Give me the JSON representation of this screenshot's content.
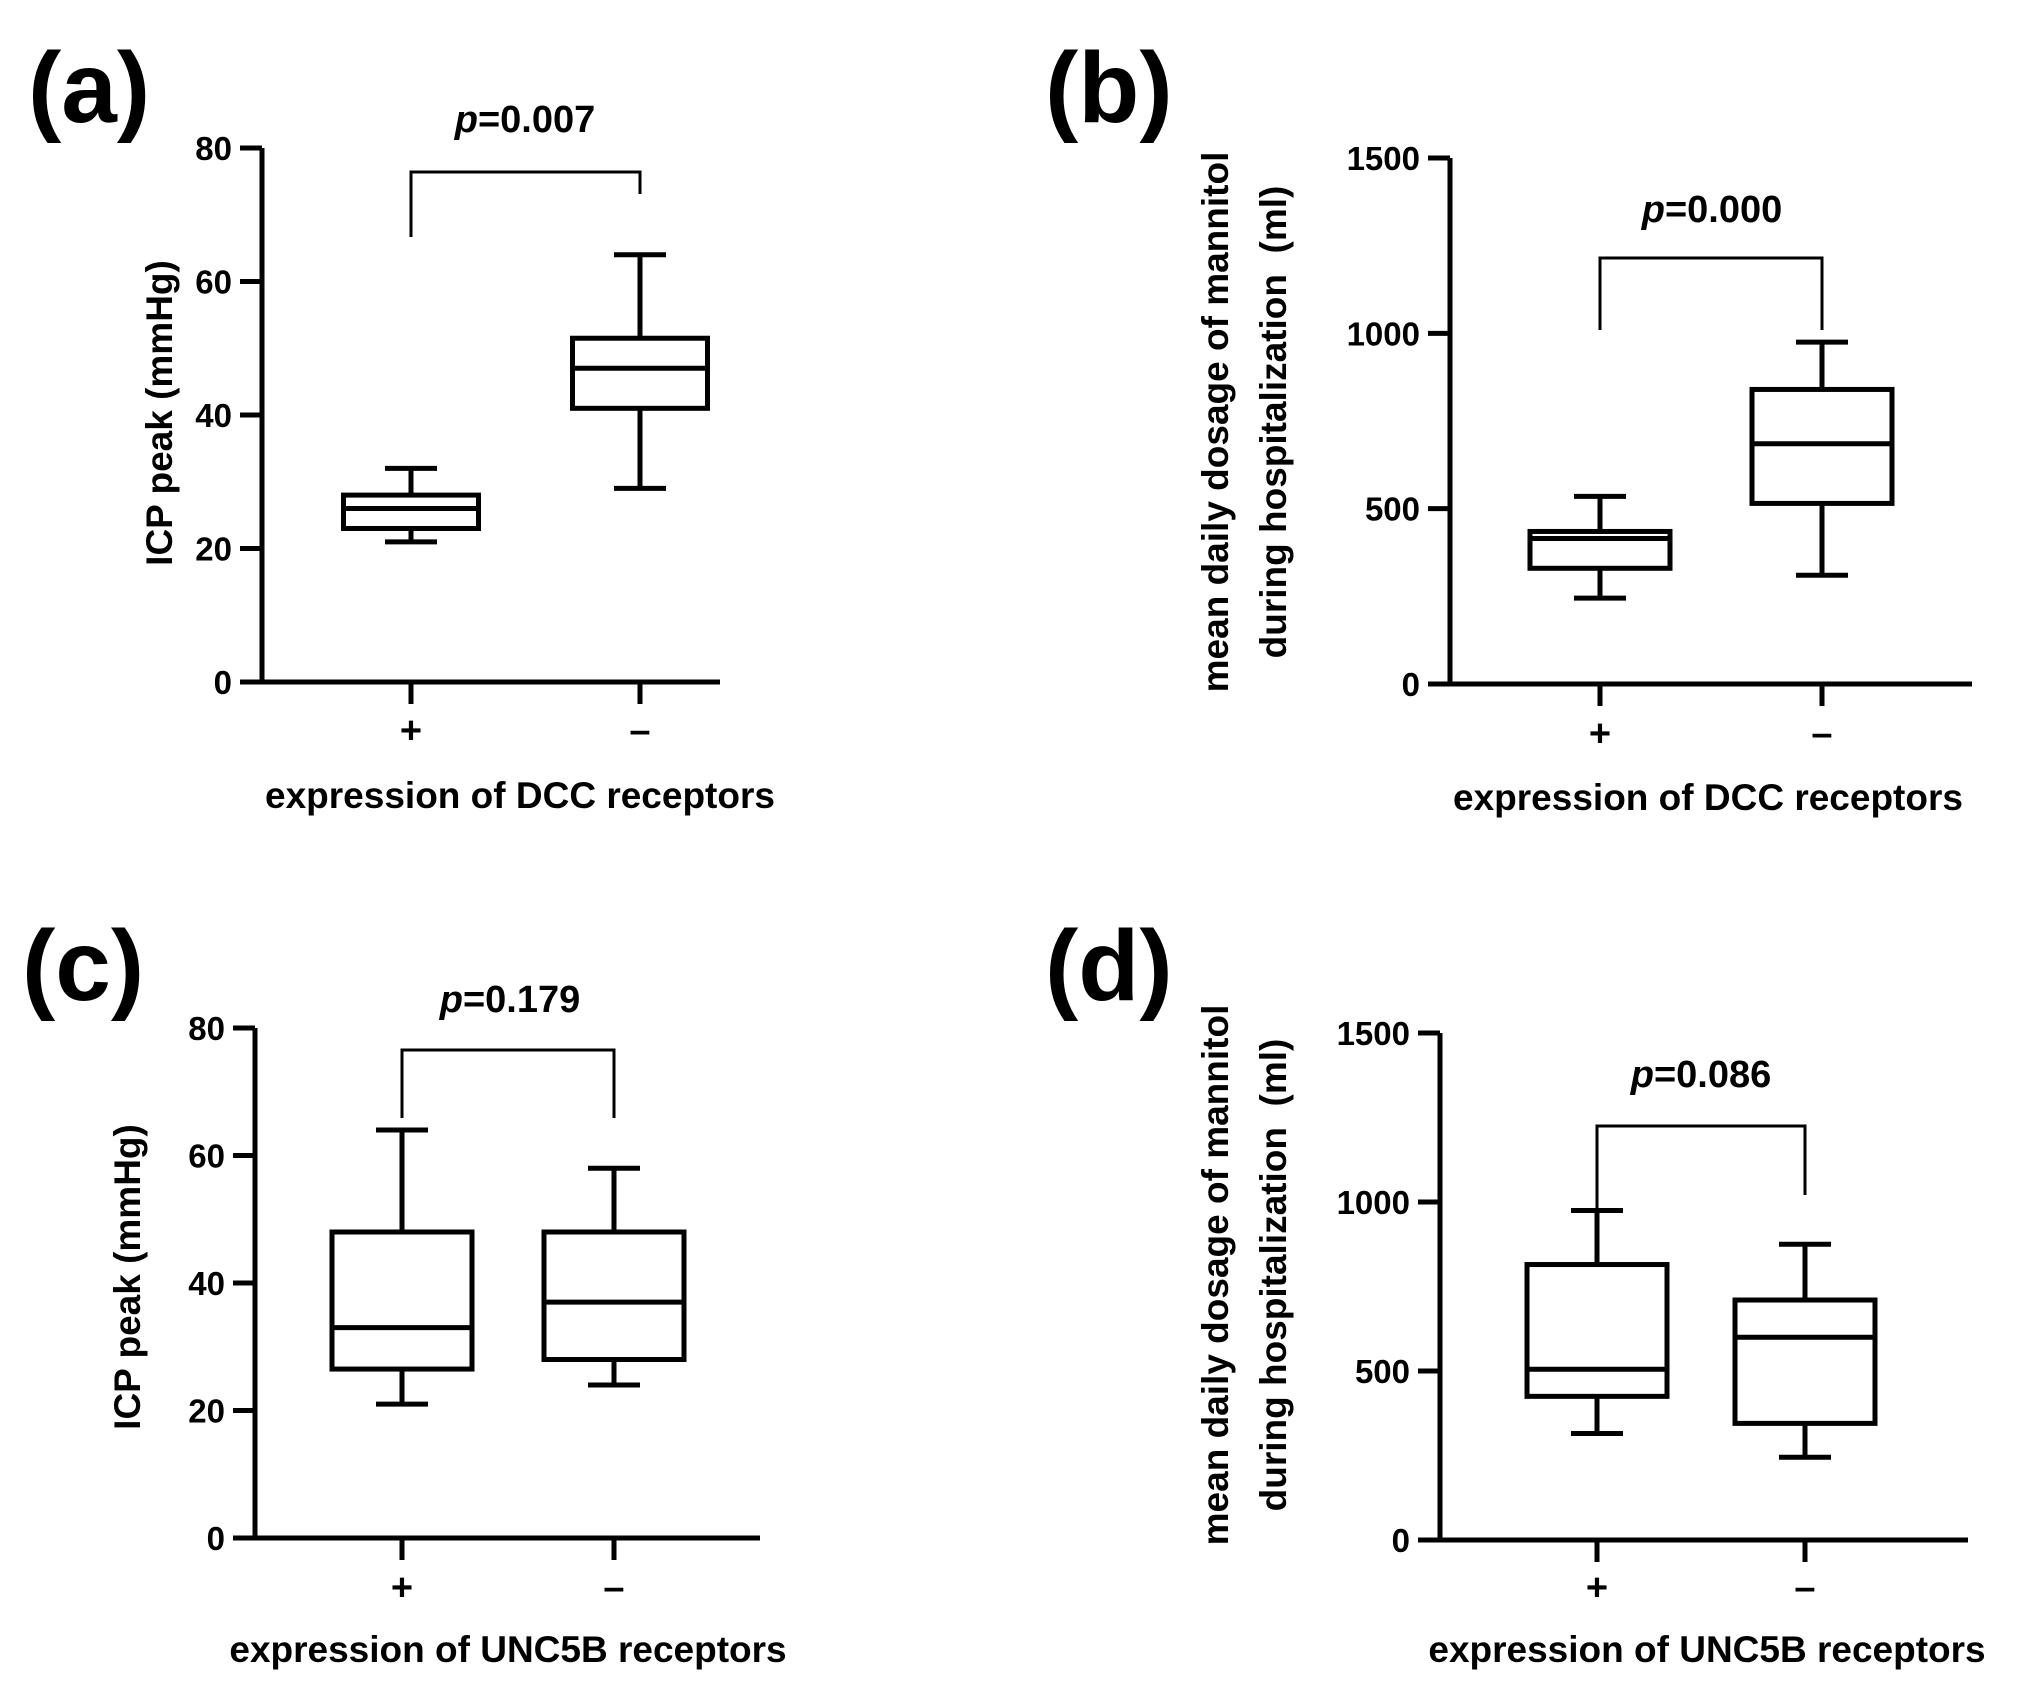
{
  "chart_data": [
    {
      "panel": "(a)",
      "type": "box",
      "ylabel": [
        "ICP peak (mmHg)"
      ],
      "xlabel": "expression of DCC receptors",
      "ylim": [
        0,
        80
      ],
      "yticks": [
        0,
        20,
        40,
        60,
        80
      ],
      "categories": [
        "+",
        "–"
      ],
      "boxes": [
        {
          "name": "+",
          "min": 21,
          "q1": 23,
          "median": 26,
          "q3": 28,
          "max": 32
        },
        {
          "name": "–",
          "min": 29,
          "q1": 41,
          "median": 47,
          "q3": 51.5,
          "max": 64
        }
      ],
      "annotation": {
        "p_prefix": "p",
        "p_value": "=0.007"
      }
    },
    {
      "panel": "(b)",
      "type": "box",
      "ylabel": [
        "mean daily dosage of mannitol",
        "during hospitalization  (ml)"
      ],
      "xlabel": "expression of DCC receptors",
      "ylim": [
        0,
        1500
      ],
      "yticks": [
        0,
        500,
        1000,
        1500
      ],
      "categories": [
        "+",
        "–"
      ],
      "boxes": [
        {
          "name": "+",
          "min": 245,
          "q1": 330,
          "median": 415,
          "q3": 435,
          "max": 535
        },
        {
          "name": "–",
          "min": 310,
          "q1": 515,
          "median": 685,
          "q3": 840,
          "max": 975
        }
      ],
      "annotation": {
        "p_prefix": "p",
        "p_value": "=0.000"
      }
    },
    {
      "panel": "(c)",
      "type": "box",
      "ylabel": [
        "ICP peak (mmHg)"
      ],
      "xlabel": "expression of UNC5B receptors",
      "ylim": [
        0,
        80
      ],
      "yticks": [
        0,
        20,
        40,
        60,
        80
      ],
      "categories": [
        "+",
        "–"
      ],
      "boxes": [
        {
          "name": "+",
          "min": 21,
          "q1": 26.5,
          "median": 33,
          "q3": 48,
          "max": 64
        },
        {
          "name": "–",
          "min": 24,
          "q1": 28,
          "median": 37,
          "q3": 48,
          "max": 58
        }
      ],
      "annotation": {
        "p_prefix": "p",
        "p_value": "=0.179"
      }
    },
    {
      "panel": "(d)",
      "type": "box",
      "ylabel": [
        "mean daily dosage of mannitol",
        "during hospitalization  (ml)"
      ],
      "xlabel": "expression of UNC5B receptors",
      "ylim": [
        0,
        1500
      ],
      "yticks": [
        0,
        500,
        1000,
        1500
      ],
      "categories": [
        "+",
        "–"
      ],
      "boxes": [
        {
          "name": "+",
          "min": 315,
          "q1": 425,
          "median": 505,
          "q3": 815,
          "max": 975
        },
        {
          "name": "–",
          "min": 245,
          "q1": 345,
          "median": 600,
          "q3": 710,
          "max": 875
        }
      ],
      "annotation": {
        "p_prefix": "p",
        "p_value": "=0.086"
      }
    }
  ]
}
